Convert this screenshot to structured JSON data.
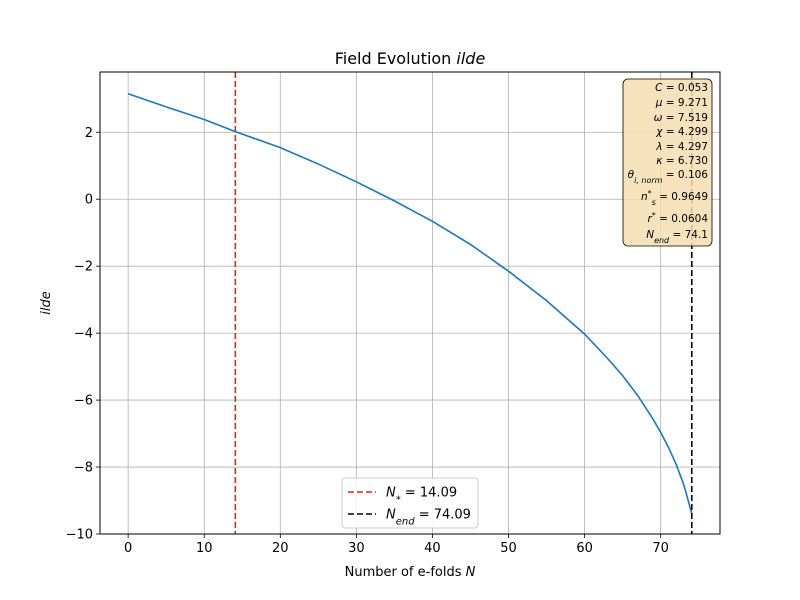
{
  "chart_data": {
    "type": "line",
    "title_prefix": "Field Evolution ",
    "title_italic": "ilde",
    "xlabel_prefix": "Number of e-folds ",
    "xlabel_italic": "N",
    "ylabel": "ilde",
    "xlim": [
      -3.7,
      77.8
    ],
    "ylim": [
      -10,
      3.8
    ],
    "xticks": [
      0,
      10,
      20,
      30,
      40,
      50,
      60,
      70
    ],
    "yticks": [
      -10,
      -8,
      -6,
      -4,
      -2,
      0,
      2
    ],
    "ytick_labels": [
      "−10",
      "−8",
      "−6",
      "−4",
      "−2",
      "0",
      "2"
    ],
    "grid": true,
    "series": [
      {
        "color": "#1f77b4",
        "x": [
          0,
          5,
          10,
          14.09,
          20,
          25,
          30,
          35,
          40,
          45,
          50,
          55,
          60,
          63,
          65,
          67,
          69,
          70,
          71,
          72,
          73,
          73.5,
          74.09
        ],
        "y": [
          3.15,
          2.76,
          2.38,
          2.02,
          1.54,
          1.05,
          0.52,
          -0.05,
          -0.66,
          -1.35,
          -2.15,
          -3.03,
          -4.03,
          -4.75,
          -5.27,
          -5.87,
          -6.57,
          -6.96,
          -7.4,
          -7.9,
          -8.5,
          -8.9,
          -9.4
        ]
      }
    ],
    "vlines": [
      {
        "x": 14.09,
        "color": "#d62728",
        "label_math": "N",
        "label_sub": "*",
        "label_value": " = 14.09"
      },
      {
        "x": 74.09,
        "color": "#000000",
        "label_math": "N",
        "label_sub": "end",
        "label_value": " = 74.09"
      }
    ],
    "legend_position": "bottom-center",
    "info_box": {
      "position": "top-right",
      "lines": [
        {
          "sym": "C",
          "sup": "",
          "sub": "",
          "value": " = 0.053"
        },
        {
          "sym": "μ",
          "sup": "",
          "sub": "",
          "value": " = 9.271"
        },
        {
          "sym": "ω",
          "sup": "",
          "sub": "",
          "value": " = 7.519"
        },
        {
          "sym": "χ",
          "sup": "",
          "sub": "",
          "value": " = 4.299"
        },
        {
          "sym": "λ",
          "sup": "",
          "sub": "",
          "value": " = 4.297"
        },
        {
          "sym": "κ",
          "sup": "",
          "sub": "",
          "value": " = 6.730"
        },
        {
          "sym": "θ",
          "sup": "",
          "sub": "i, norm",
          "value": " = 0.106"
        },
        {
          "sym": "n",
          "sup": "*",
          "sub": "s",
          "value": " = 0.9649"
        },
        {
          "sym": "r",
          "sup": "*",
          "sub": "",
          "value": " = 0.0604"
        },
        {
          "sym": "N",
          "sup": "",
          "sub": "end",
          "value": " = 74.1"
        }
      ]
    }
  }
}
